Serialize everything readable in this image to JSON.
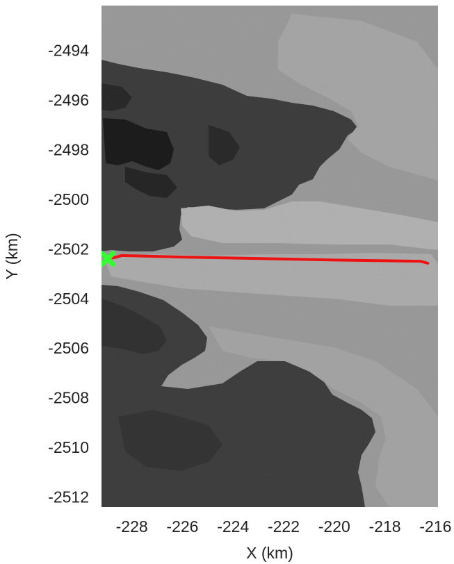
{
  "chart_data": {
    "type": "scatter",
    "title": "",
    "xlabel": "X (km)",
    "ylabel": "Y (km)",
    "xlim": [
      -229.2,
      -215.9
    ],
    "ylim": [
      -2512.4,
      -2492.2
    ],
    "x_ticks": [
      -228,
      -226,
      -224,
      -222,
      -220,
      -218,
      -216
    ],
    "x_tick_labels": [
      "-228",
      "-226",
      "-224",
      "-222",
      "-220",
      "-218",
      "-216"
    ],
    "y_ticks": [
      -2494,
      -2496,
      -2498,
      -2500,
      -2502,
      -2504,
      -2506,
      -2508,
      -2510,
      -2512
    ],
    "y_tick_labels": [
      "-2494",
      "-2496",
      "-2498",
      "-2500",
      "-2502",
      "-2504",
      "-2506",
      "-2508",
      "-2510",
      "-2512"
    ],
    "grid": false,
    "background": "grayscale satellite image",
    "series": [
      {
        "kind": "line",
        "color": "#ee1111",
        "x": [
          -228.9,
          -228.6,
          -228.4,
          -228.0,
          -226.0,
          -224.0,
          -222.0,
          -220.0,
          -218.0,
          -216.6,
          -216.3
        ],
        "y": [
          -2502.4,
          -2502.33,
          -2502.27,
          -2502.28,
          -2502.33,
          -2502.37,
          -2502.41,
          -2502.45,
          -2502.48,
          -2502.5,
          -2502.58
        ]
      },
      {
        "kind": "marker",
        "marker": "x",
        "color": "#33ff33",
        "x": [
          -228.95
        ],
        "y": [
          -2502.4
        ]
      }
    ]
  }
}
